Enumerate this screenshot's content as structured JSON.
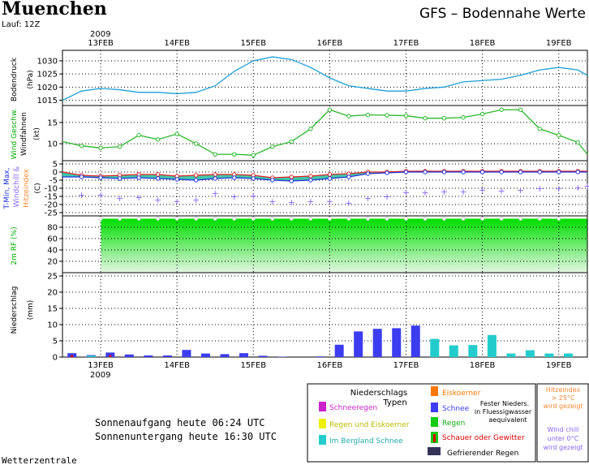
{
  "header": {
    "city": "Muenchen",
    "run": "Lauf: 12Z",
    "title": "GFS  –  Bodennahe Werte",
    "year": "2009"
  },
  "footer": {
    "credit": "Wetterzentrale",
    "sunrise": "Sonnenaufgang heute 06:24 UTC",
    "sunset": "Sonnenuntergang heute 16:30 UTC"
  },
  "x_ticks": [
    {
      "label": "13FEB",
      "t": 6
    },
    {
      "label": "14FEB",
      "t": 30
    },
    {
      "label": "15FEB",
      "t": 54
    },
    {
      "label": "16FEB",
      "t": 78
    },
    {
      "label": "17FEB",
      "t": 102
    },
    {
      "label": "18FEB",
      "t": 126
    },
    {
      "label": "19FEB",
      "t": 150
    }
  ],
  "x_range": [
    -6,
    159
  ],
  "colors": {
    "pressure": "#1e9fd8",
    "wind": "#2bb62b",
    "tmin": "#2233dd",
    "tmax": "#dd2222",
    "windchill": "#8866ff",
    "heat": "#ff8833",
    "rh_top": "#00dd00",
    "rh_bottom": "#e4f6e4",
    "snow": "#3c3cf0",
    "berg_snow": "#22cccc",
    "rain": "#11cc11",
    "schneeregen": "#cc22cc",
    "regen_eis": "#eeee00",
    "eiskoerner": "#ff7700",
    "frz": "#333355",
    "shower": "#dd0000",
    "grid": "#000000"
  },
  "panels": {
    "pressure": {
      "ylabel": "Bodendruck",
      "unit": "(hPa)",
      "ticks": [
        "1015",
        "1020",
        "1025",
        "1030"
      ]
    },
    "wind": {
      "ylabel": "Wind Geschw.",
      "ylabel2": "Windfahnen",
      "unit": "(kt)",
      "ticks": [
        "10",
        "15"
      ]
    },
    "temp": {
      "ylabel_a": "T-Min, Max,",
      "ylabel_b": "Windchill &",
      "ylabel_c": "Hitzeindex",
      "unit": "(C)",
      "ticks": [
        "5",
        "0",
        "-5",
        "-10",
        "-15",
        "-20",
        "-25"
      ]
    },
    "rh": {
      "ylabel": "2m RF (%)",
      "ticks": [
        "20",
        "40",
        "60",
        "80"
      ]
    },
    "precip": {
      "ylabel": "Niederschlag",
      "unit": "(mm)",
      "ticks": [
        "0",
        "5",
        "10",
        "15",
        "20",
        "25"
      ]
    }
  },
  "legend": {
    "title_a": "Niederschlags",
    "title_b": "Typen",
    "schneeregen": "Schneeregen",
    "regen_eis": "Regen und Eiskoerner",
    "berg": "Im Bergland Schnee",
    "eiskoerner": "Eiskoerner",
    "schnee": "Schnee",
    "fester_a": "Fester Nieders.",
    "fester_b": "in Fluessigwasser",
    "fester_c": "aequivalent",
    "regen": "Regen",
    "schauer": "Schauer oder Gewitter",
    "gefrierender": "Gefrierender Regen",
    "hitze_a": "Hitzeindex",
    "hitze_b": "> 25°C",
    "hitze_c": "wird gezeigt",
    "chill_a": "Wind chill",
    "chill_b": "unter 0°C",
    "chill_c": "wird gezeigt"
  },
  "chart_data": [
    {
      "type": "line",
      "title": "Bodendruck",
      "ylabel": "Bodendruck (hPa)",
      "ylim": [
        1013,
        1034
      ],
      "series": [
        {
          "name": "Bodendruck",
          "x": [
            -6,
            0,
            6,
            12,
            18,
            24,
            30,
            36,
            42,
            48,
            54,
            60,
            66,
            72,
            78,
            84,
            90,
            96,
            102,
            108,
            114,
            120,
            126,
            132,
            138,
            144,
            150,
            156,
            159
          ],
          "values": [
            1015,
            1018.5,
            1019.5,
            1019,
            1018,
            1018,
            1017.5,
            1018,
            1020.5,
            1026,
            1030,
            1031.5,
            1030.5,
            1027.5,
            1023.5,
            1020.5,
            1019.5,
            1018.5,
            1018.5,
            1019.5,
            1020,
            1022,
            1022.5,
            1023,
            1024.5,
            1026.5,
            1027.5,
            1026.5,
            1024.5
          ]
        }
      ]
    },
    {
      "type": "line",
      "title": "Wind Geschw.",
      "ylabel": "Wind (kt)",
      "ylim": [
        6,
        19
      ],
      "series": [
        {
          "name": "Wind Geschw.",
          "x": [
            -6,
            0,
            6,
            12,
            18,
            24,
            30,
            36,
            42,
            48,
            54,
            60,
            66,
            72,
            78,
            84,
            90,
            96,
            102,
            108,
            114,
            120,
            126,
            132,
            138,
            144,
            150,
            156,
            159
          ],
          "values": [
            10.5,
            9.5,
            9,
            9.3,
            12,
            11,
            12.3,
            10,
            7.5,
            7.5,
            7.3,
            9.3,
            10.5,
            13.5,
            18,
            16.5,
            16.8,
            16.7,
            16.6,
            16,
            16,
            16.2,
            17,
            18,
            18,
            13.5,
            12,
            10.3,
            7.5
          ]
        }
      ]
    },
    {
      "type": "line",
      "title": "T-Min, Max, Windchill & Hitzeindex",
      "ylabel": "(C)",
      "ylim": [
        -27,
        7
      ],
      "x": [
        -6,
        0,
        6,
        12,
        18,
        24,
        30,
        36,
        42,
        48,
        54,
        60,
        66,
        72,
        78,
        84,
        90,
        96,
        102,
        108,
        114,
        120,
        126,
        132,
        138,
        144,
        150,
        156,
        159
      ],
      "series": [
        {
          "name": "T-Max",
          "values": [
            0,
            -2,
            -2.5,
            -2,
            -1.5,
            -1.5,
            -2.5,
            -2,
            -1.5,
            -1.5,
            -2,
            -3.5,
            -3,
            -2.5,
            -1.5,
            -1,
            0,
            0,
            0.5,
            0.5,
            0.5,
            0.5,
            0.5,
            0.5,
            0.5,
            0.5,
            0.5,
            0.5,
            0.5
          ]
        },
        {
          "name": "T-Min",
          "values": [
            -3,
            -3,
            -3.5,
            -4,
            -3.5,
            -4,
            -4.5,
            -5,
            -4,
            -3.5,
            -4,
            -5,
            -5.5,
            -5,
            -4,
            -3,
            -1,
            -0.5,
            0,
            0,
            0,
            0,
            0,
            0,
            0,
            0,
            0,
            0,
            0
          ]
        },
        {
          "name": "Windchill",
          "values": [
            -11,
            -14,
            -14,
            -16,
            -15.5,
            -17,
            -18,
            -17,
            -13,
            -15,
            -14.5,
            -18,
            -18.5,
            -18,
            -18,
            -19,
            -16,
            -15,
            -12.5,
            -12.5,
            -12,
            -12,
            -11,
            -11.5,
            -11,
            -10,
            -10,
            -9.5,
            -8.5
          ]
        }
      ]
    },
    {
      "type": "area",
      "title": "2m RF",
      "ylabel": "2m RF (%)",
      "ylim": [
        0,
        100
      ],
      "series": [
        {
          "name": "2m RF",
          "x": [
            0,
            159
          ],
          "values": [
            95,
            95
          ]
        }
      ]
    },
    {
      "type": "bar",
      "title": "Niederschlag",
      "ylabel": "Niederschlag (mm)",
      "ylim": [
        0,
        26
      ],
      "series": [
        {
          "name": "Schnee",
          "x": [
            -3,
            3,
            9,
            15,
            21,
            27,
            33,
            39,
            45,
            51,
            57,
            63,
            75,
            81,
            87,
            93,
            99,
            105,
            111,
            117,
            123,
            129,
            135,
            141,
            147,
            153
          ],
          "values": [
            1.2,
            0.6,
            1.4,
            0.8,
            0.5,
            0.5,
            2.2,
            1.1,
            0.9,
            1.2,
            0.4,
            0.1,
            0.2,
            3.8,
            7.9,
            8.7,
            8.9,
            9.7,
            0,
            0,
            0,
            0,
            0,
            0,
            0,
            0
          ]
        },
        {
          "name": "Im Bergland Schnee",
          "x": [
            3,
            111,
            117,
            123,
            129,
            135,
            141,
            147,
            153
          ],
          "values": [
            0.4,
            5.6,
            3.6,
            3.7,
            6.8,
            1.1,
            2.1,
            1.1,
            1.1
          ]
        },
        {
          "name": "Schauer oder Gewitter",
          "x": [
            -3,
            9
          ],
          "values": [
            0.6,
            0.6
          ]
        }
      ]
    }
  ]
}
